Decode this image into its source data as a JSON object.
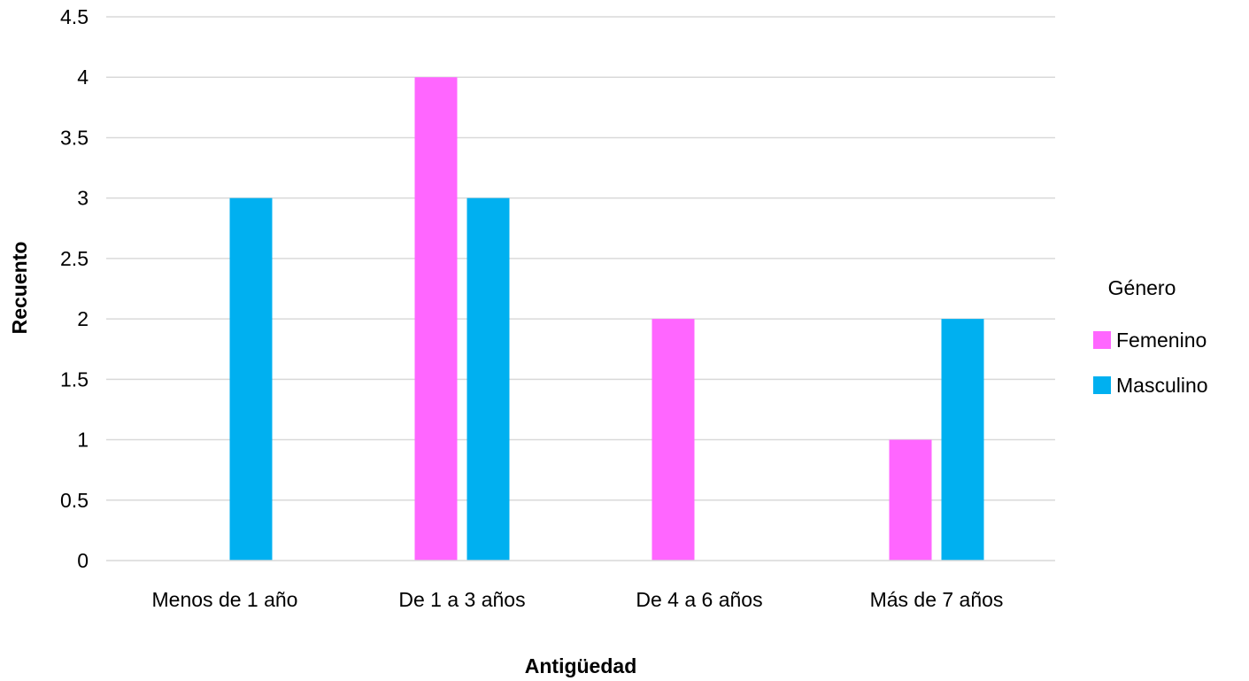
{
  "chart_data": {
    "type": "bar",
    "title": "",
    "xlabel": "Antigüedad",
    "ylabel": "Recuento",
    "categories": [
      "Menos de 1 año",
      "De 1 a 3 años",
      "De 4 a 6 años",
      "Más de 7 años"
    ],
    "series": [
      {
        "name": "Femenino",
        "color": "#FF66FF",
        "values": [
          0,
          4,
          2,
          1
        ]
      },
      {
        "name": "Masculino",
        "color": "#00B0F0",
        "values": [
          3,
          3,
          0,
          2
        ]
      }
    ],
    "ylim": [
      0,
      4.5
    ],
    "yticks": [
      "0",
      "0.5",
      "1",
      "1.5",
      "2",
      "2.5",
      "3",
      "3.5",
      "4",
      "4.5"
    ],
    "grid": true,
    "legend": {
      "title": "Género",
      "position": "right"
    }
  }
}
